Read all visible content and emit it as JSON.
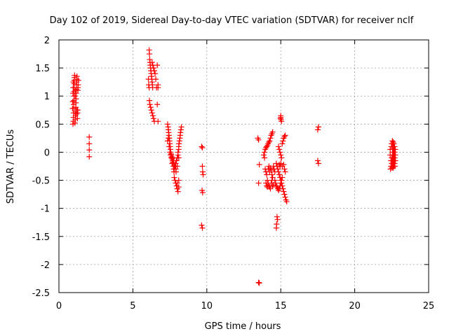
{
  "chart_data": {
    "type": "scatter",
    "title": "Day 102 of 2019, Sidereal Day-to-day VTEC variation (SDTVAR) for receiver nclf",
    "xlabel": "GPS time / hours",
    "ylabel": "SDTVAR / TECUs",
    "xlim": [
      0,
      25
    ],
    "ylim": [
      -2.5,
      2
    ],
    "grid": true,
    "marker": "plus",
    "color": "#ff0000",
    "xticks": [
      0,
      5,
      10,
      15,
      20,
      25
    ],
    "xtick_labels": [
      "0",
      "5",
      "10",
      "15",
      "20",
      "25"
    ],
    "yticks": [
      -2.5,
      -2,
      -1.5,
      -1,
      -0.5,
      0,
      0.5,
      1,
      1.5,
      2
    ],
    "ytick_labels": [
      "-2.5",
      "-2",
      "-1.5",
      "-1",
      "-0.5",
      "0",
      "0.5",
      "1",
      "1.5",
      "2"
    ],
    "series": [
      {
        "name": "SDTVAR",
        "points": [
          [
            0.95,
            0.5
          ],
          [
            0.97,
            0.55
          ],
          [
            0.98,
            0.62
          ],
          [
            0.99,
            0.7
          ],
          [
            1.0,
            0.78
          ],
          [
            1.0,
            0.85
          ],
          [
            1.01,
            0.92
          ],
          [
            1.02,
            1.0
          ],
          [
            1.02,
            1.08
          ],
          [
            1.03,
            1.15
          ],
          [
            1.03,
            1.22
          ],
          [
            1.04,
            1.28
          ],
          [
            1.05,
            1.33
          ],
          [
            1.06,
            1.37
          ],
          [
            0.92,
            0.78
          ],
          [
            0.93,
            0.9
          ],
          [
            0.95,
            1.05
          ],
          [
            0.96,
            1.15
          ],
          [
            0.97,
            1.25
          ],
          [
            1.08,
            0.52
          ],
          [
            1.1,
            0.58
          ],
          [
            1.12,
            0.65
          ],
          [
            1.13,
            0.72
          ],
          [
            1.14,
            0.8
          ],
          [
            1.15,
            0.88
          ],
          [
            1.16,
            0.95
          ],
          [
            1.17,
            1.05
          ],
          [
            1.18,
            1.12
          ],
          [
            1.19,
            1.2
          ],
          [
            1.2,
            1.25
          ],
          [
            1.21,
            1.3
          ],
          [
            1.22,
            1.35
          ],
          [
            1.25,
            0.6
          ],
          [
            1.26,
            0.7
          ],
          [
            1.27,
            0.75
          ],
          [
            1.28,
            1.1
          ],
          [
            1.29,
            1.15
          ],
          [
            1.3,
            1.2
          ],
          [
            1.31,
            1.28
          ],
          [
            1.1,
            1.0
          ],
          [
            1.12,
            1.1
          ],
          [
            1.18,
            0.68
          ],
          [
            1.22,
            0.75
          ],
          [
            2.05,
            0.27
          ],
          [
            2.05,
            0.15
          ],
          [
            2.05,
            0.04
          ],
          [
            2.05,
            -0.08
          ],
          [
            6.1,
            1.82
          ],
          [
            6.12,
            1.75
          ],
          [
            6.14,
            1.65
          ],
          [
            6.16,
            1.6
          ],
          [
            6.18,
            1.55
          ],
          [
            6.2,
            1.5
          ],
          [
            6.22,
            1.45
          ],
          [
            6.24,
            1.4
          ],
          [
            6.26,
            1.35
          ],
          [
            6.28,
            1.3
          ],
          [
            6.3,
            1.25
          ],
          [
            6.32,
            1.2
          ],
          [
            6.34,
            1.15
          ],
          [
            6.05,
            1.3
          ],
          [
            6.07,
            1.2
          ],
          [
            6.1,
            1.15
          ],
          [
            6.12,
            0.92
          ],
          [
            6.15,
            0.85
          ],
          [
            6.2,
            0.8
          ],
          [
            6.25,
            0.75
          ],
          [
            6.3,
            0.7
          ],
          [
            6.35,
            0.65
          ],
          [
            6.4,
            0.6
          ],
          [
            6.45,
            0.55
          ],
          [
            6.3,
            1.6
          ],
          [
            6.35,
            1.55
          ],
          [
            6.4,
            1.5
          ],
          [
            6.45,
            1.45
          ],
          [
            6.5,
            1.4
          ],
          [
            6.55,
            1.3
          ],
          [
            6.6,
            1.15
          ],
          [
            6.65,
            1.55
          ],
          [
            6.65,
            0.85
          ],
          [
            6.7,
            0.55
          ],
          [
            6.7,
            1.2
          ],
          [
            6.7,
            1.15
          ],
          [
            7.35,
            0.5
          ],
          [
            7.38,
            0.45
          ],
          [
            7.4,
            0.4
          ],
          [
            7.42,
            0.35
          ],
          [
            7.44,
            0.3
          ],
          [
            7.46,
            0.25
          ],
          [
            7.48,
            0.2
          ],
          [
            7.5,
            0.15
          ],
          [
            7.52,
            0.1
          ],
          [
            7.54,
            0.05
          ],
          [
            7.56,
            0.0
          ],
          [
            7.58,
            -0.03
          ],
          [
            7.6,
            -0.05
          ],
          [
            7.62,
            -0.08
          ],
          [
            7.64,
            -0.1
          ],
          [
            7.66,
            -0.12
          ],
          [
            7.68,
            -0.15
          ],
          [
            7.7,
            -0.18
          ],
          [
            7.72,
            -0.2
          ],
          [
            7.74,
            -0.25
          ],
          [
            7.76,
            -0.3
          ],
          [
            7.78,
            -0.35
          ],
          [
            7.35,
            0.2
          ],
          [
            7.4,
            0.25
          ],
          [
            7.45,
            0.1
          ],
          [
            7.5,
            0.0
          ],
          [
            7.55,
            -0.05
          ],
          [
            7.6,
            -0.1
          ],
          [
            7.65,
            -0.2
          ],
          [
            7.7,
            -0.1
          ],
          [
            7.75,
            -0.15
          ],
          [
            7.8,
            -0.25
          ],
          [
            7.8,
            -0.45
          ],
          [
            7.85,
            -0.5
          ],
          [
            7.9,
            -0.55
          ],
          [
            7.95,
            -0.6
          ],
          [
            8.0,
            -0.65
          ],
          [
            8.05,
            -0.7
          ],
          [
            7.8,
            -0.3
          ],
          [
            7.85,
            -0.25
          ],
          [
            7.9,
            -0.2
          ],
          [
            7.95,
            -0.15
          ],
          [
            8.0,
            -0.1
          ],
          [
            8.05,
            -0.05
          ],
          [
            8.05,
            0.0
          ],
          [
            8.1,
            0.05
          ],
          [
            8.1,
            0.1
          ],
          [
            8.12,
            0.15
          ],
          [
            8.15,
            0.2
          ],
          [
            8.18,
            0.25
          ],
          [
            8.2,
            0.3
          ],
          [
            8.22,
            0.35
          ],
          [
            8.25,
            0.4
          ],
          [
            8.28,
            0.45
          ],
          [
            7.9,
            -0.3
          ],
          [
            7.92,
            -0.35
          ],
          [
            8.0,
            -0.25
          ],
          [
            8.1,
            -0.1
          ],
          [
            8.0,
            -0.55
          ],
          [
            8.1,
            -0.5
          ],
          [
            8.1,
            -0.62
          ],
          [
            9.65,
            0.1
          ],
          [
            9.7,
            0.08
          ],
          [
            9.7,
            -0.25
          ],
          [
            9.72,
            -0.35
          ],
          [
            9.75,
            -0.4
          ],
          [
            9.68,
            -0.68
          ],
          [
            9.72,
            -0.72
          ],
          [
            9.65,
            -1.3
          ],
          [
            9.7,
            -1.35
          ],
          [
            13.5,
            -2.32
          ],
          [
            13.55,
            -2.33
          ],
          [
            13.45,
            0.25
          ],
          [
            13.5,
            0.22
          ],
          [
            13.55,
            -0.22
          ],
          [
            13.5,
            -0.55
          ],
          [
            13.9,
            0.0
          ],
          [
            13.95,
            0.05
          ],
          [
            14.0,
            0.08
          ],
          [
            14.05,
            0.1
          ],
          [
            14.1,
            0.12
          ],
          [
            14.15,
            0.15
          ],
          [
            14.2,
            0.18
          ],
          [
            14.25,
            0.2
          ],
          [
            14.3,
            0.25
          ],
          [
            14.35,
            0.3
          ],
          [
            14.4,
            0.33
          ],
          [
            14.45,
            0.36
          ],
          [
            13.85,
            -0.05
          ],
          [
            13.9,
            -0.1
          ],
          [
            13.95,
            -0.3
          ],
          [
            14.0,
            -0.35
          ],
          [
            14.05,
            -0.4
          ],
          [
            14.1,
            -0.5
          ],
          [
            14.15,
            -0.55
          ],
          [
            14.2,
            -0.6
          ],
          [
            14.25,
            -0.62
          ],
          [
            14.3,
            -0.65
          ],
          [
            14.35,
            -0.55
          ],
          [
            14.4,
            -0.5
          ],
          [
            14.0,
            -0.55
          ],
          [
            14.05,
            -0.6
          ],
          [
            14.1,
            -0.62
          ],
          [
            14.15,
            -0.3
          ],
          [
            14.2,
            -0.25
          ],
          [
            14.25,
            -0.35
          ],
          [
            14.3,
            -0.28
          ],
          [
            14.35,
            -0.32
          ],
          [
            14.4,
            -0.4
          ],
          [
            14.45,
            -0.45
          ],
          [
            14.7,
            -0.2
          ],
          [
            14.75,
            -0.25
          ],
          [
            14.8,
            -0.3
          ],
          [
            14.85,
            -0.35
          ],
          [
            14.9,
            -0.4
          ],
          [
            14.95,
            -0.45
          ],
          [
            15.0,
            -0.5
          ],
          [
            15.05,
            -0.55
          ],
          [
            15.1,
            -0.6
          ],
          [
            15.15,
            -0.65
          ],
          [
            15.2,
            -0.7
          ],
          [
            15.25,
            -0.75
          ],
          [
            15.3,
            -0.8
          ],
          [
            15.35,
            -0.85
          ],
          [
            15.4,
            -0.88
          ],
          [
            15.0,
            -0.2
          ],
          [
            15.1,
            -0.25
          ],
          [
            15.2,
            -0.22
          ],
          [
            15.25,
            -0.3
          ],
          [
            15.3,
            -0.35
          ],
          [
            14.9,
            -0.22
          ],
          [
            14.95,
            -0.25
          ],
          [
            14.6,
            -0.5
          ],
          [
            14.65,
            -0.55
          ],
          [
            14.7,
            -0.6
          ],
          [
            14.75,
            -0.62
          ],
          [
            14.8,
            -0.65
          ],
          [
            14.85,
            -0.68
          ],
          [
            14.9,
            -0.65
          ],
          [
            14.95,
            -0.6
          ],
          [
            15.0,
            -0.55
          ],
          [
            15.05,
            -0.5
          ],
          [
            15.1,
            -0.45
          ],
          [
            14.85,
            0.1
          ],
          [
            14.9,
            0.05
          ],
          [
            14.95,
            0.0
          ],
          [
            15.0,
            -0.05
          ],
          [
            15.05,
            -0.1
          ],
          [
            15.1,
            0.15
          ],
          [
            15.15,
            0.2
          ],
          [
            15.2,
            0.25
          ],
          [
            15.25,
            0.28
          ],
          [
            15.3,
            0.3
          ],
          [
            15.0,
            0.62
          ],
          [
            15.02,
            0.58
          ],
          [
            15.05,
            0.55
          ],
          [
            15.0,
            0.65
          ],
          [
            14.98,
            0.6
          ],
          [
            14.75,
            -1.15
          ],
          [
            14.78,
            -1.2
          ],
          [
            14.72,
            -1.28
          ],
          [
            14.7,
            -1.35
          ],
          [
            14.5,
            -0.25
          ],
          [
            14.55,
            -0.3
          ],
          [
            14.6,
            -0.35
          ],
          [
            14.45,
            -0.6
          ],
          [
            14.5,
            -0.58
          ],
          [
            17.55,
            0.45
          ],
          [
            17.5,
            0.4
          ],
          [
            17.5,
            -0.15
          ],
          [
            17.55,
            -0.2
          ],
          [
            22.4,
            0.05
          ],
          [
            22.4,
            -0.05
          ],
          [
            22.45,
            -0.15
          ],
          [
            22.45,
            -0.25
          ],
          [
            22.42,
            -0.3
          ],
          [
            22.48,
            0.1
          ],
          [
            22.5,
            0.15
          ],
          [
            22.5,
            -0.1
          ],
          [
            22.5,
            -0.2
          ],
          [
            22.52,
            -0.28
          ],
          [
            22.55,
            0.2
          ],
          [
            22.55,
            0.15
          ],
          [
            22.55,
            0.05
          ],
          [
            22.55,
            -0.05
          ],
          [
            22.55,
            -0.15
          ],
          [
            22.55,
            -0.25
          ],
          [
            22.6,
            0.18
          ],
          [
            22.6,
            0.1
          ],
          [
            22.6,
            0.0
          ],
          [
            22.6,
            -0.1
          ],
          [
            22.6,
            -0.2
          ],
          [
            22.6,
            -0.28
          ],
          [
            22.65,
            0.15
          ],
          [
            22.65,
            0.05
          ],
          [
            22.65,
            -0.05
          ],
          [
            22.65,
            -0.15
          ],
          [
            22.65,
            -0.25
          ],
          [
            22.7,
            0.1
          ],
          [
            22.7,
            0.0
          ],
          [
            22.7,
            -0.1
          ],
          [
            22.7,
            -0.2
          ],
          [
            22.72,
            -0.25
          ],
          [
            22.75,
            0.05
          ],
          [
            22.75,
            -0.05
          ],
          [
            22.75,
            -0.15
          ]
        ]
      }
    ]
  }
}
